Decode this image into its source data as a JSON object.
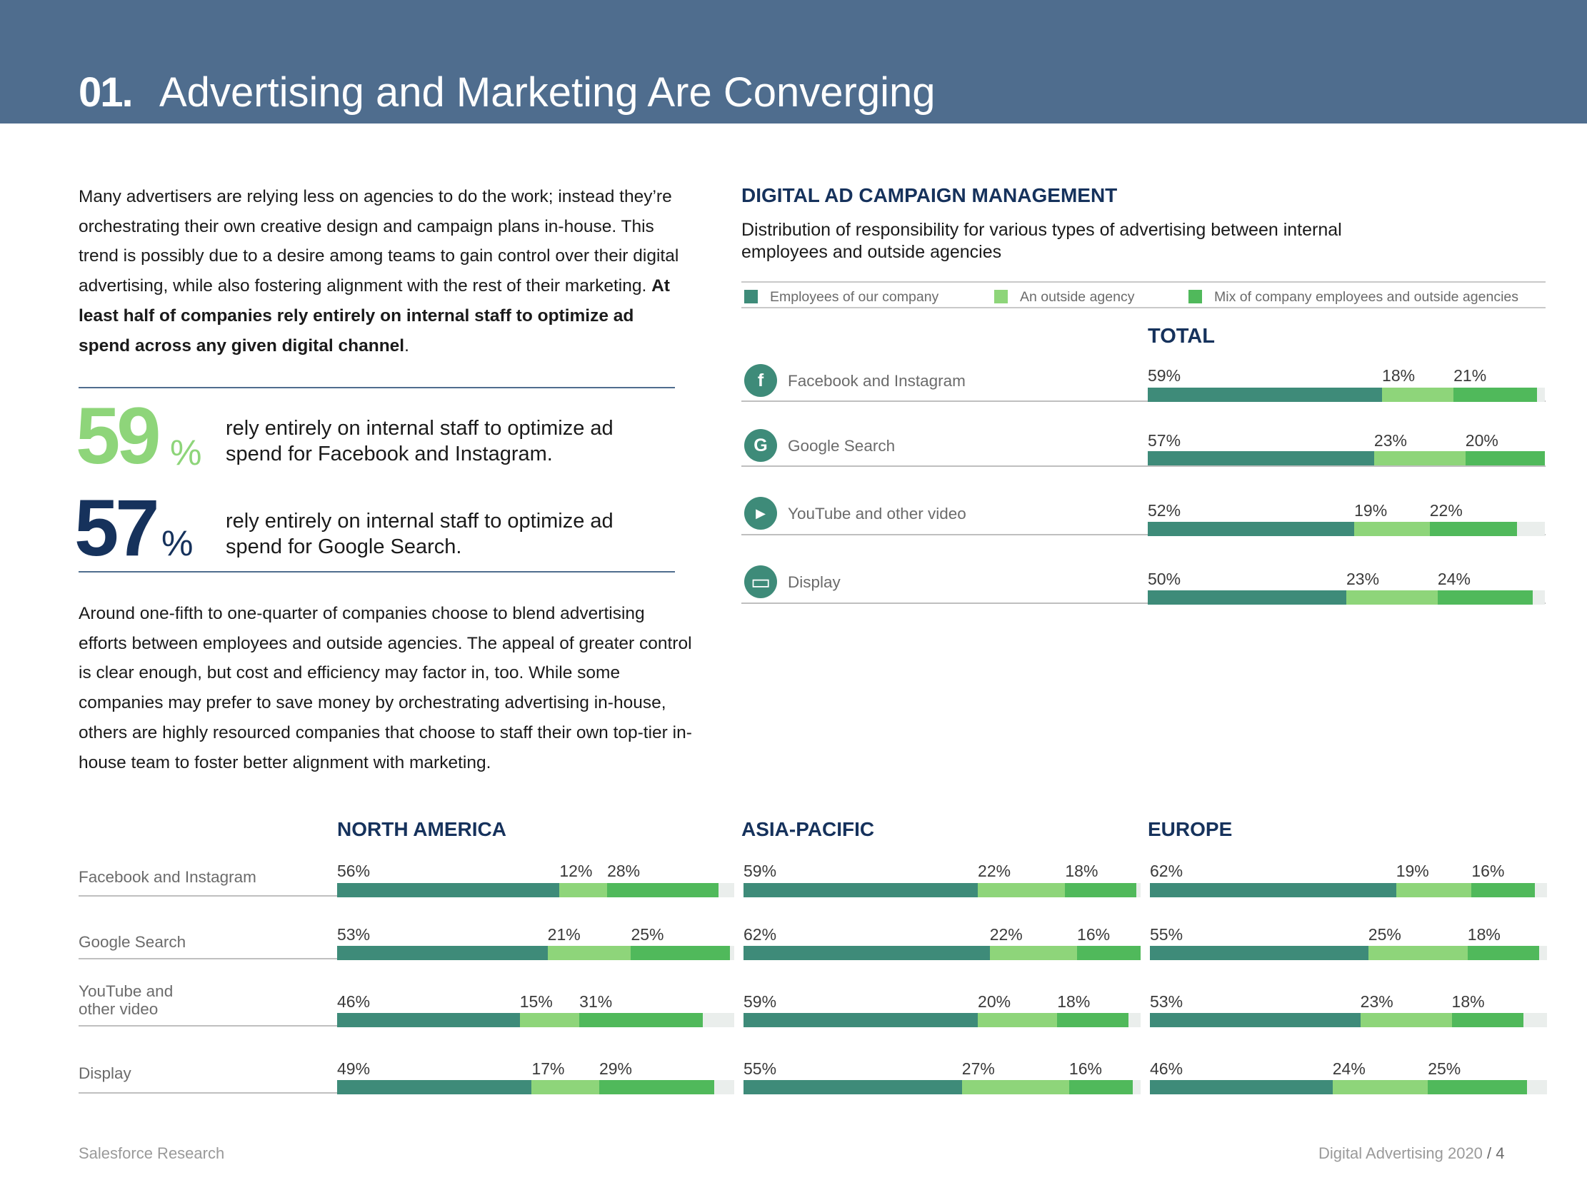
{
  "header": {
    "number": "01.",
    "title": "Advertising and Marketing Are Converging"
  },
  "intro": {
    "text": "Many advertisers are relying less on agencies to do the work; instead they’re orchestrating their own creative design and campaign plans in-house. This trend is possibly due to a desire among teams to gain control over their digital advertising, while also fostering alignment with the rest of their marketing. ",
    "bold": "At least half of companies rely entirely on internal staff to optimize ad spend across any given digital channel",
    "end": "."
  },
  "stats": [
    {
      "value": "59",
      "unit": "%",
      "text": "rely entirely on internal staff to optimize ad spend for Facebook and Instagram.",
      "color": "#8ed57a"
    },
    {
      "value": "57",
      "unit": "%",
      "text": "rely entirely on internal staff to optimize ad spend for Google Search.",
      "color": "#16325c"
    }
  ],
  "body2": "Around one-fifth to one-quarter of companies choose to blend advertising efforts between employees and outside agencies. The appeal of greater control is clear enough, but cost and efficiency may factor in, too. While some companies may prefer to save money by orchestrating advertising in-house, others are highly resourced companies that choose to staff their own top-tier in-house team to foster better alignment with marketing.",
  "chart": {
    "title": "DIGITAL AD CAMPAIGN MANAGEMENT",
    "subtitle": "Distribution of responsibility for various types of advertising between internal employees and outside agencies",
    "legend": [
      "Employees of our company",
      "An outside agency",
      "Mix of company employees and outside agencies"
    ],
    "total_label": "TOTAL",
    "icons": [
      "facebook-icon",
      "google-icon",
      "youtube-icon",
      "display-icon"
    ],
    "icon_glyphs": [
      "f",
      "G",
      "▶",
      "▭"
    ]
  },
  "colors": {
    "employees": "#3e8b79",
    "agency": "#8ed57a",
    "mix": "#50b95b",
    "track": "#eaeeec"
  },
  "chart_data": [
    {
      "type": "bar",
      "title": "TOTAL",
      "categories": [
        "Facebook and Instagram",
        "Google Search",
        "YouTube and other video",
        "Display"
      ],
      "series": [
        {
          "name": "Employees of our company",
          "values": [
            59,
            57,
            52,
            50
          ]
        },
        {
          "name": "An outside agency",
          "values": [
            18,
            23,
            19,
            23
          ]
        },
        {
          "name": "Mix of company employees and outside agencies",
          "values": [
            21,
            20,
            22,
            24
          ]
        }
      ],
      "stacked": true,
      "orientation": "horizontal",
      "xlim": [
        0,
        100
      ]
    },
    {
      "type": "bar",
      "title": "NORTH AMERICA",
      "categories": [
        "Facebook and Instagram",
        "Google Search",
        "YouTube and other video",
        "Display"
      ],
      "series": [
        {
          "name": "Employees of our company",
          "values": [
            56,
            53,
            46,
            49
          ]
        },
        {
          "name": "An outside agency",
          "values": [
            12,
            21,
            15,
            17
          ]
        },
        {
          "name": "Mix of company employees and outside agencies",
          "values": [
            28,
            25,
            31,
            29
          ]
        }
      ],
      "stacked": true,
      "orientation": "horizontal",
      "xlim": [
        0,
        100
      ]
    },
    {
      "type": "bar",
      "title": "ASIA-PACIFIC",
      "categories": [
        "Facebook and Instagram",
        "Google Search",
        "YouTube and other video",
        "Display"
      ],
      "series": [
        {
          "name": "Employees of our company",
          "values": [
            59,
            62,
            59,
            55
          ]
        },
        {
          "name": "An outside agency",
          "values": [
            22,
            22,
            20,
            27
          ]
        },
        {
          "name": "Mix of company employees and outside agencies",
          "values": [
            18,
            16,
            18,
            16
          ]
        }
      ],
      "stacked": true,
      "orientation": "horizontal",
      "xlim": [
        0,
        100
      ]
    },
    {
      "type": "bar",
      "title": "EUROPE",
      "categories": [
        "Facebook and Instagram",
        "Google Search",
        "YouTube and other video",
        "Display"
      ],
      "series": [
        {
          "name": "Employees of our company",
          "values": [
            62,
            55,
            53,
            46
          ]
        },
        {
          "name": "An outside agency",
          "values": [
            19,
            25,
            23,
            24
          ]
        },
        {
          "name": "Mix of company employees and outside agencies",
          "values": [
            16,
            18,
            18,
            25
          ]
        }
      ],
      "stacked": true,
      "orientation": "horizontal",
      "xlim": [
        0,
        100
      ]
    }
  ],
  "footer": {
    "left": "Salesforce Research",
    "right": "Digital Advertising 2020",
    "sep": "/",
    "page": "4"
  }
}
